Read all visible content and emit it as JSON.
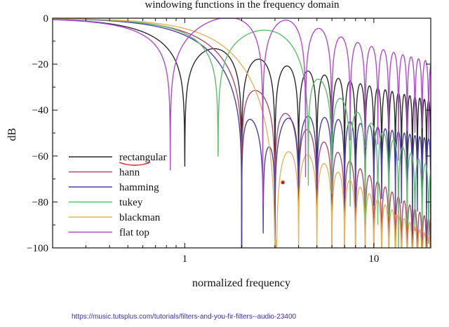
{
  "chart_data": {
    "type": "line",
    "title": "windowing functions in the frequency domain",
    "xlabel": "normalized frequency",
    "ylabel": "dB",
    "x_scale": "log",
    "xlim": [
      0.2,
      20
    ],
    "ylim": [
      -100,
      0
    ],
    "x_ticks": [
      {
        "value": 1,
        "label": "1"
      },
      {
        "value": 10,
        "label": "10"
      }
    ],
    "y_ticks": [
      {
        "value": 0,
        "label": "0"
      },
      {
        "value": -20,
        "label": "−20"
      },
      {
        "value": -40,
        "label": "−40"
      },
      {
        "value": -60,
        "label": "−60"
      },
      {
        "value": -80,
        "label": "−80"
      },
      {
        "value": -100,
        "label": "−100"
      }
    ],
    "grid": false,
    "legend_position": "bottom-left",
    "series": [
      {
        "name": "rectangular",
        "color": "#2a2a2a",
        "null_x": 1.0,
        "first_sidelobe_db": -13.3
      },
      {
        "name": "hann",
        "color": "#b5496a",
        "null_x": 2.0,
        "first_sidelobe_db": -31.5
      },
      {
        "name": "hamming",
        "color": "#4b3fa8",
        "null_x": 2.0,
        "first_sidelobe_db": -42.7
      },
      {
        "name": "tukey",
        "color": "#5cbf6a",
        "null_x": 1.5,
        "first_sidelobe_db": -15.0
      },
      {
        "name": "blackman",
        "color": "#e6b35a",
        "null_x": 3.0,
        "first_sidelobe_db": -58.1
      },
      {
        "name": "flat top",
        "color": "#b04bd0",
        "null_x": 4.5,
        "first_sidelobe_db": -65.0
      }
    ],
    "annotations": [
      {
        "kind": "point",
        "x": 3.3,
        "y": -71.5,
        "color": "#e0161b"
      },
      {
        "kind": "underline-mark",
        "target": "rectangular",
        "color": "#d31d1d"
      }
    ]
  },
  "caption": {
    "url": "https://music.tutsplus.com/tutorials/filters-and-you-fir-filters--audio-23400"
  }
}
